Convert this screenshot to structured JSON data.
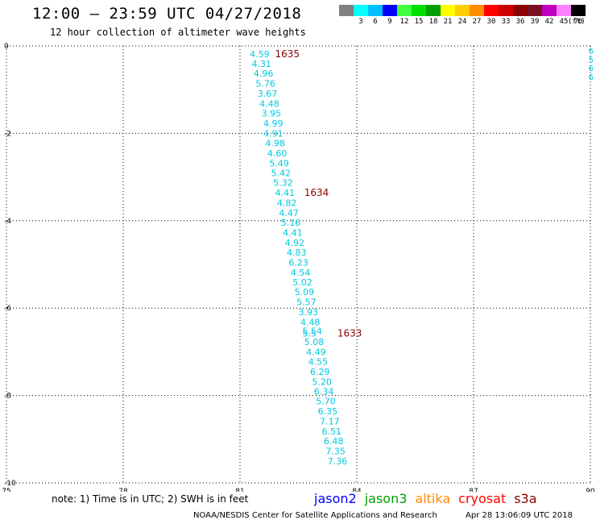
{
  "header": {
    "title": "12:00 – 23:59 UTC 04/27/2018",
    "subtitle": "12 hour collection of altimeter wave heights"
  },
  "color_scale": {
    "unit": "(ft)",
    "items": [
      {
        "label": "",
        "color": "#808080"
      },
      {
        "label": "3",
        "color": "#00ffff"
      },
      {
        "label": "6",
        "color": "#00bfff"
      },
      {
        "label": "9",
        "color": "#0000ff"
      },
      {
        "label": "12",
        "color": "#40ff40"
      },
      {
        "label": "15",
        "color": "#00e000"
      },
      {
        "label": "18",
        "color": "#00a000"
      },
      {
        "label": "21",
        "color": "#ffff00"
      },
      {
        "label": "24",
        "color": "#ffcc00"
      },
      {
        "label": "27",
        "color": "#ff8c00"
      },
      {
        "label": "30",
        "color": "#ff0000"
      },
      {
        "label": "33",
        "color": "#cc0000"
      },
      {
        "label": "36",
        "color": "#8b0000"
      },
      {
        "label": "39",
        "color": "#7b1020"
      },
      {
        "label": "42",
        "color": "#c000c0"
      },
      {
        "label": "45",
        "color": "#ff80ff"
      },
      {
        "label": "70",
        "color": "#000000"
      }
    ]
  },
  "map": {
    "lon_ticks": [
      "75",
      "78",
      "81",
      "84",
      "87",
      "90"
    ],
    "lat_ticks": [
      "0",
      "-2",
      "-4",
      "-6",
      "-8",
      "-10"
    ],
    "extent": {
      "lon_min": 75,
      "lon_max": 90,
      "lat_min": -10,
      "lat_max": 0
    },
    "track_color": "#00c8e0",
    "time_color": "#8b0000",
    "track": [
      {
        "lon": 81.25,
        "lat": -0.18,
        "swh": "4.59"
      },
      {
        "lon": 81.3,
        "lat": -0.41,
        "swh": "4.31"
      },
      {
        "lon": 81.35,
        "lat": -0.63,
        "swh": "4.96"
      },
      {
        "lon": 81.4,
        "lat": -0.86,
        "swh": "5.76"
      },
      {
        "lon": 81.45,
        "lat": -1.09,
        "swh": "3.67"
      },
      {
        "lon": 81.5,
        "lat": -1.32,
        "swh": "4.48"
      },
      {
        "lon": 81.55,
        "lat": -1.54,
        "swh": "3.95"
      },
      {
        "lon": 81.6,
        "lat": -1.77,
        "swh": "4.99"
      },
      {
        "lon": 81.6,
        "lat": -2.0,
        "swh": "4.91"
      },
      {
        "lon": 81.65,
        "lat": -2.22,
        "swh": "4.98"
      },
      {
        "lon": 81.7,
        "lat": -2.45,
        "swh": "4.60"
      },
      {
        "lon": 81.75,
        "lat": -2.68,
        "swh": "5.49"
      },
      {
        "lon": 81.8,
        "lat": -2.91,
        "swh": "5.42"
      },
      {
        "lon": 81.85,
        "lat": -3.13,
        "swh": "5.32"
      },
      {
        "lon": 81.9,
        "lat": -3.36,
        "swh": "4.41"
      },
      {
        "lon": 81.95,
        "lat": -3.59,
        "swh": "4.82"
      },
      {
        "lon": 82.0,
        "lat": -3.82,
        "swh": "4.47"
      },
      {
        "lon": 82.05,
        "lat": -4.04,
        "swh": "5.16"
      },
      {
        "lon": 82.1,
        "lat": -4.27,
        "swh": "4.41"
      },
      {
        "lon": 82.15,
        "lat": -4.5,
        "swh": "4.92"
      },
      {
        "lon": 82.2,
        "lat": -4.72,
        "swh": "4.83"
      },
      {
        "lon": 82.25,
        "lat": -4.95,
        "swh": "6.23"
      },
      {
        "lon": 82.3,
        "lat": -5.18,
        "swh": "4.54"
      },
      {
        "lon": 82.35,
        "lat": -5.41,
        "swh": "5.02"
      },
      {
        "lon": 82.4,
        "lat": -5.63,
        "swh": "5.09"
      },
      {
        "lon": 82.45,
        "lat": -5.86,
        "swh": "5.57"
      },
      {
        "lon": 82.5,
        "lat": -6.09,
        "swh": "3.93"
      },
      {
        "lon": 82.55,
        "lat": -6.32,
        "swh": "4.48"
      },
      {
        "lon": 82.6,
        "lat": -6.52,
        "swh": "5.54"
      },
      {
        "lon": 82.6,
        "lat": -6.58,
        "swh": "5.5"
      },
      {
        "lon": 82.65,
        "lat": -6.77,
        "swh": "5.08"
      },
      {
        "lon": 82.7,
        "lat": -7.0,
        "swh": "4.49"
      },
      {
        "lon": 82.75,
        "lat": -7.22,
        "swh": "4.55"
      },
      {
        "lon": 82.8,
        "lat": -7.45,
        "swh": "6.29"
      },
      {
        "lon": 82.85,
        "lat": -7.68,
        "swh": "5.20"
      },
      {
        "lon": 82.9,
        "lat": -7.91,
        "swh": "6.34"
      },
      {
        "lon": 82.95,
        "lat": -8.13,
        "swh": "5.70"
      },
      {
        "lon": 83.0,
        "lat": -8.36,
        "swh": "6.35"
      },
      {
        "lon": 83.05,
        "lat": -8.59,
        "swh": "7.17"
      },
      {
        "lon": 83.1,
        "lat": -8.82,
        "swh": "6.51"
      },
      {
        "lon": 83.15,
        "lat": -9.04,
        "swh": "6.48"
      },
      {
        "lon": 83.2,
        "lat": -9.27,
        "swh": "7.35"
      },
      {
        "lon": 83.25,
        "lat": -9.5,
        "swh": "7.36"
      }
    ],
    "time_labels": [
      {
        "lon": 81.9,
        "lat": -0.18,
        "text": "1635"
      },
      {
        "lon": 82.65,
        "lat": -3.36,
        "text": "1634"
      },
      {
        "lon": 83.5,
        "lat": -6.58,
        "text": "1633"
      }
    ],
    "edge_digits": [
      {
        "lon": 89.95,
        "lat": -0.1,
        "text": "6"
      },
      {
        "lon": 89.95,
        "lat": -0.3,
        "text": "5"
      },
      {
        "lon": 89.95,
        "lat": -0.5,
        "text": "6"
      },
      {
        "lon": 89.95,
        "lat": -0.7,
        "text": "6"
      }
    ]
  },
  "footer": {
    "note": "note:  1) Time is in UTC;  2) SWH is in feet",
    "legend": [
      {
        "label": "jason2",
        "color": "#0000ff"
      },
      {
        "label": "jason3",
        "color": "#00a000"
      },
      {
        "label": "altika",
        "color": "#ff8c00"
      },
      {
        "label": "cryosat",
        "color": "#ff0000"
      },
      {
        "label": "s3a",
        "color": "#8b0000"
      }
    ],
    "credit": "NOAA/NESDIS Center for Satellite Applications and Research",
    "timestamp": "Apr 28 13:06:09 UTC 2018"
  }
}
